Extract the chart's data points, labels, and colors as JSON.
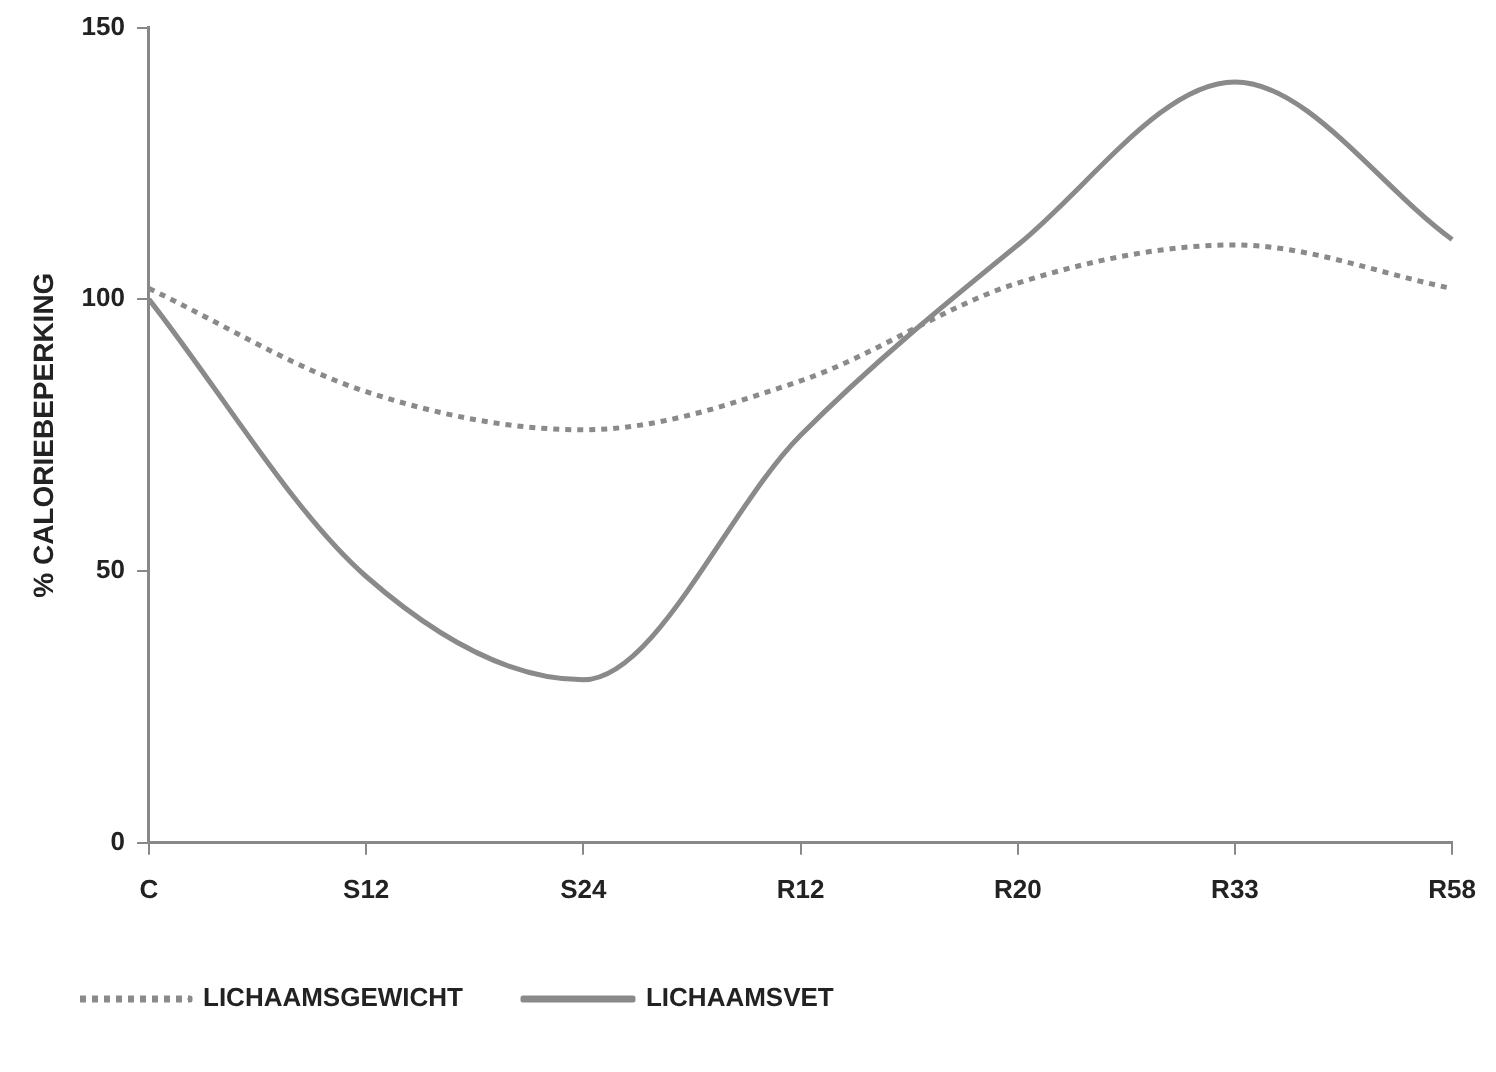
{
  "chart_data": {
    "type": "line",
    "ylabel": "% CALORIEBEPERKING",
    "categories": [
      "C",
      "S12",
      "S24",
      "R12",
      "R20",
      "R33",
      "R58"
    ],
    "ylim": [
      0,
      150
    ],
    "yticks": [
      0,
      50,
      100,
      150
    ],
    "series": [
      {
        "name": "LICHAAMSGEWICHT",
        "color": "#8a8a8a",
        "line_style": "dotted",
        "values": [
          102,
          83,
          76,
          85,
          103,
          110,
          102
        ]
      },
      {
        "name": "LICHAAMSVET",
        "color": "#8a8a8a",
        "line_style": "solid",
        "values": [
          100,
          49,
          30,
          75,
          110,
          140,
          111
        ]
      }
    ],
    "grid": false,
    "legend": "bottom left",
    "marker": "none"
  }
}
